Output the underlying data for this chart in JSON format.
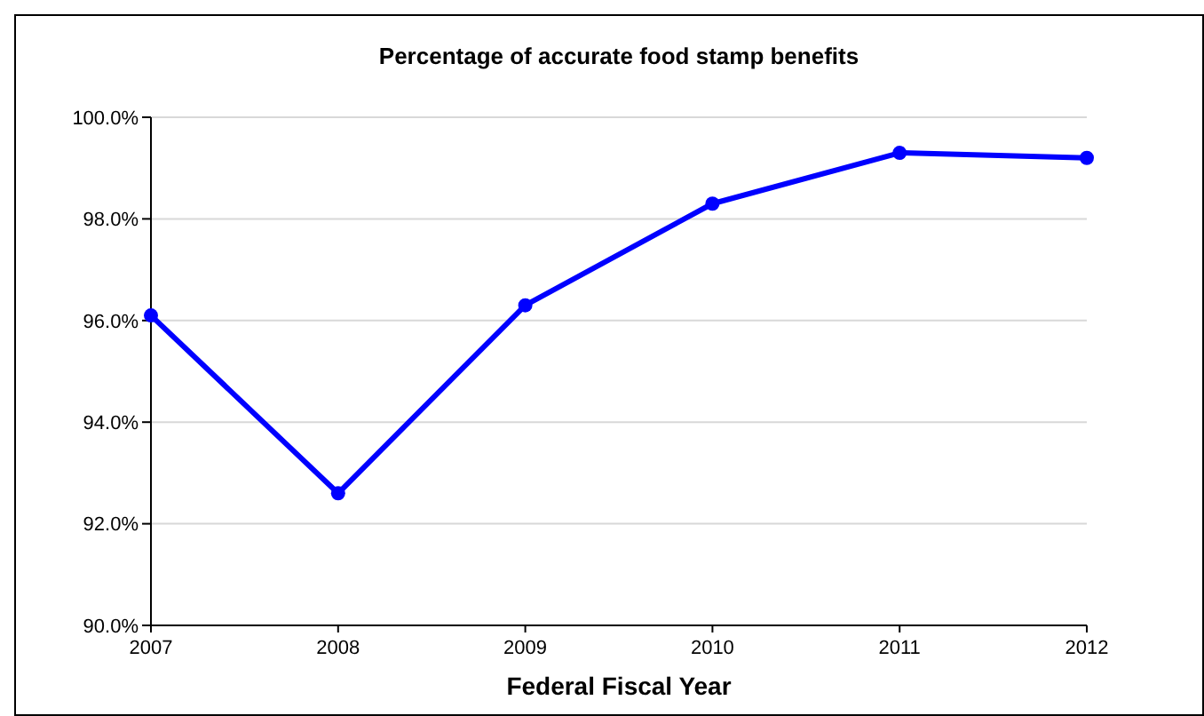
{
  "chart_data": {
    "type": "line",
    "title": "Percentage of accurate food stamp benefits",
    "xlabel": "Federal Fiscal Year",
    "x": [
      2007,
      2008,
      2009,
      2010,
      2011,
      2012
    ],
    "series": [
      {
        "color": "#0000ff",
        "values": [
          96.1,
          92.6,
          96.3,
          98.3,
          99.3,
          99.2
        ]
      }
    ],
    "xlim": [
      2007,
      2012
    ],
    "xticks": [
      2007,
      2008,
      2009,
      2010,
      2011,
      2012
    ],
    "ylim": [
      90,
      100
    ],
    "yticks": [
      {
        "value": 90,
        "label": "90.0%"
      },
      {
        "value": 92,
        "label": "92.0%"
      },
      {
        "value": 94,
        "label": "94.0%"
      },
      {
        "value": 96,
        "label": "96.0%"
      },
      {
        "value": 98,
        "label": "98.0%"
      },
      {
        "value": 100,
        "label": "100.0%"
      }
    ],
    "grid": "y",
    "marker": "circle",
    "line_style": "solid"
  }
}
